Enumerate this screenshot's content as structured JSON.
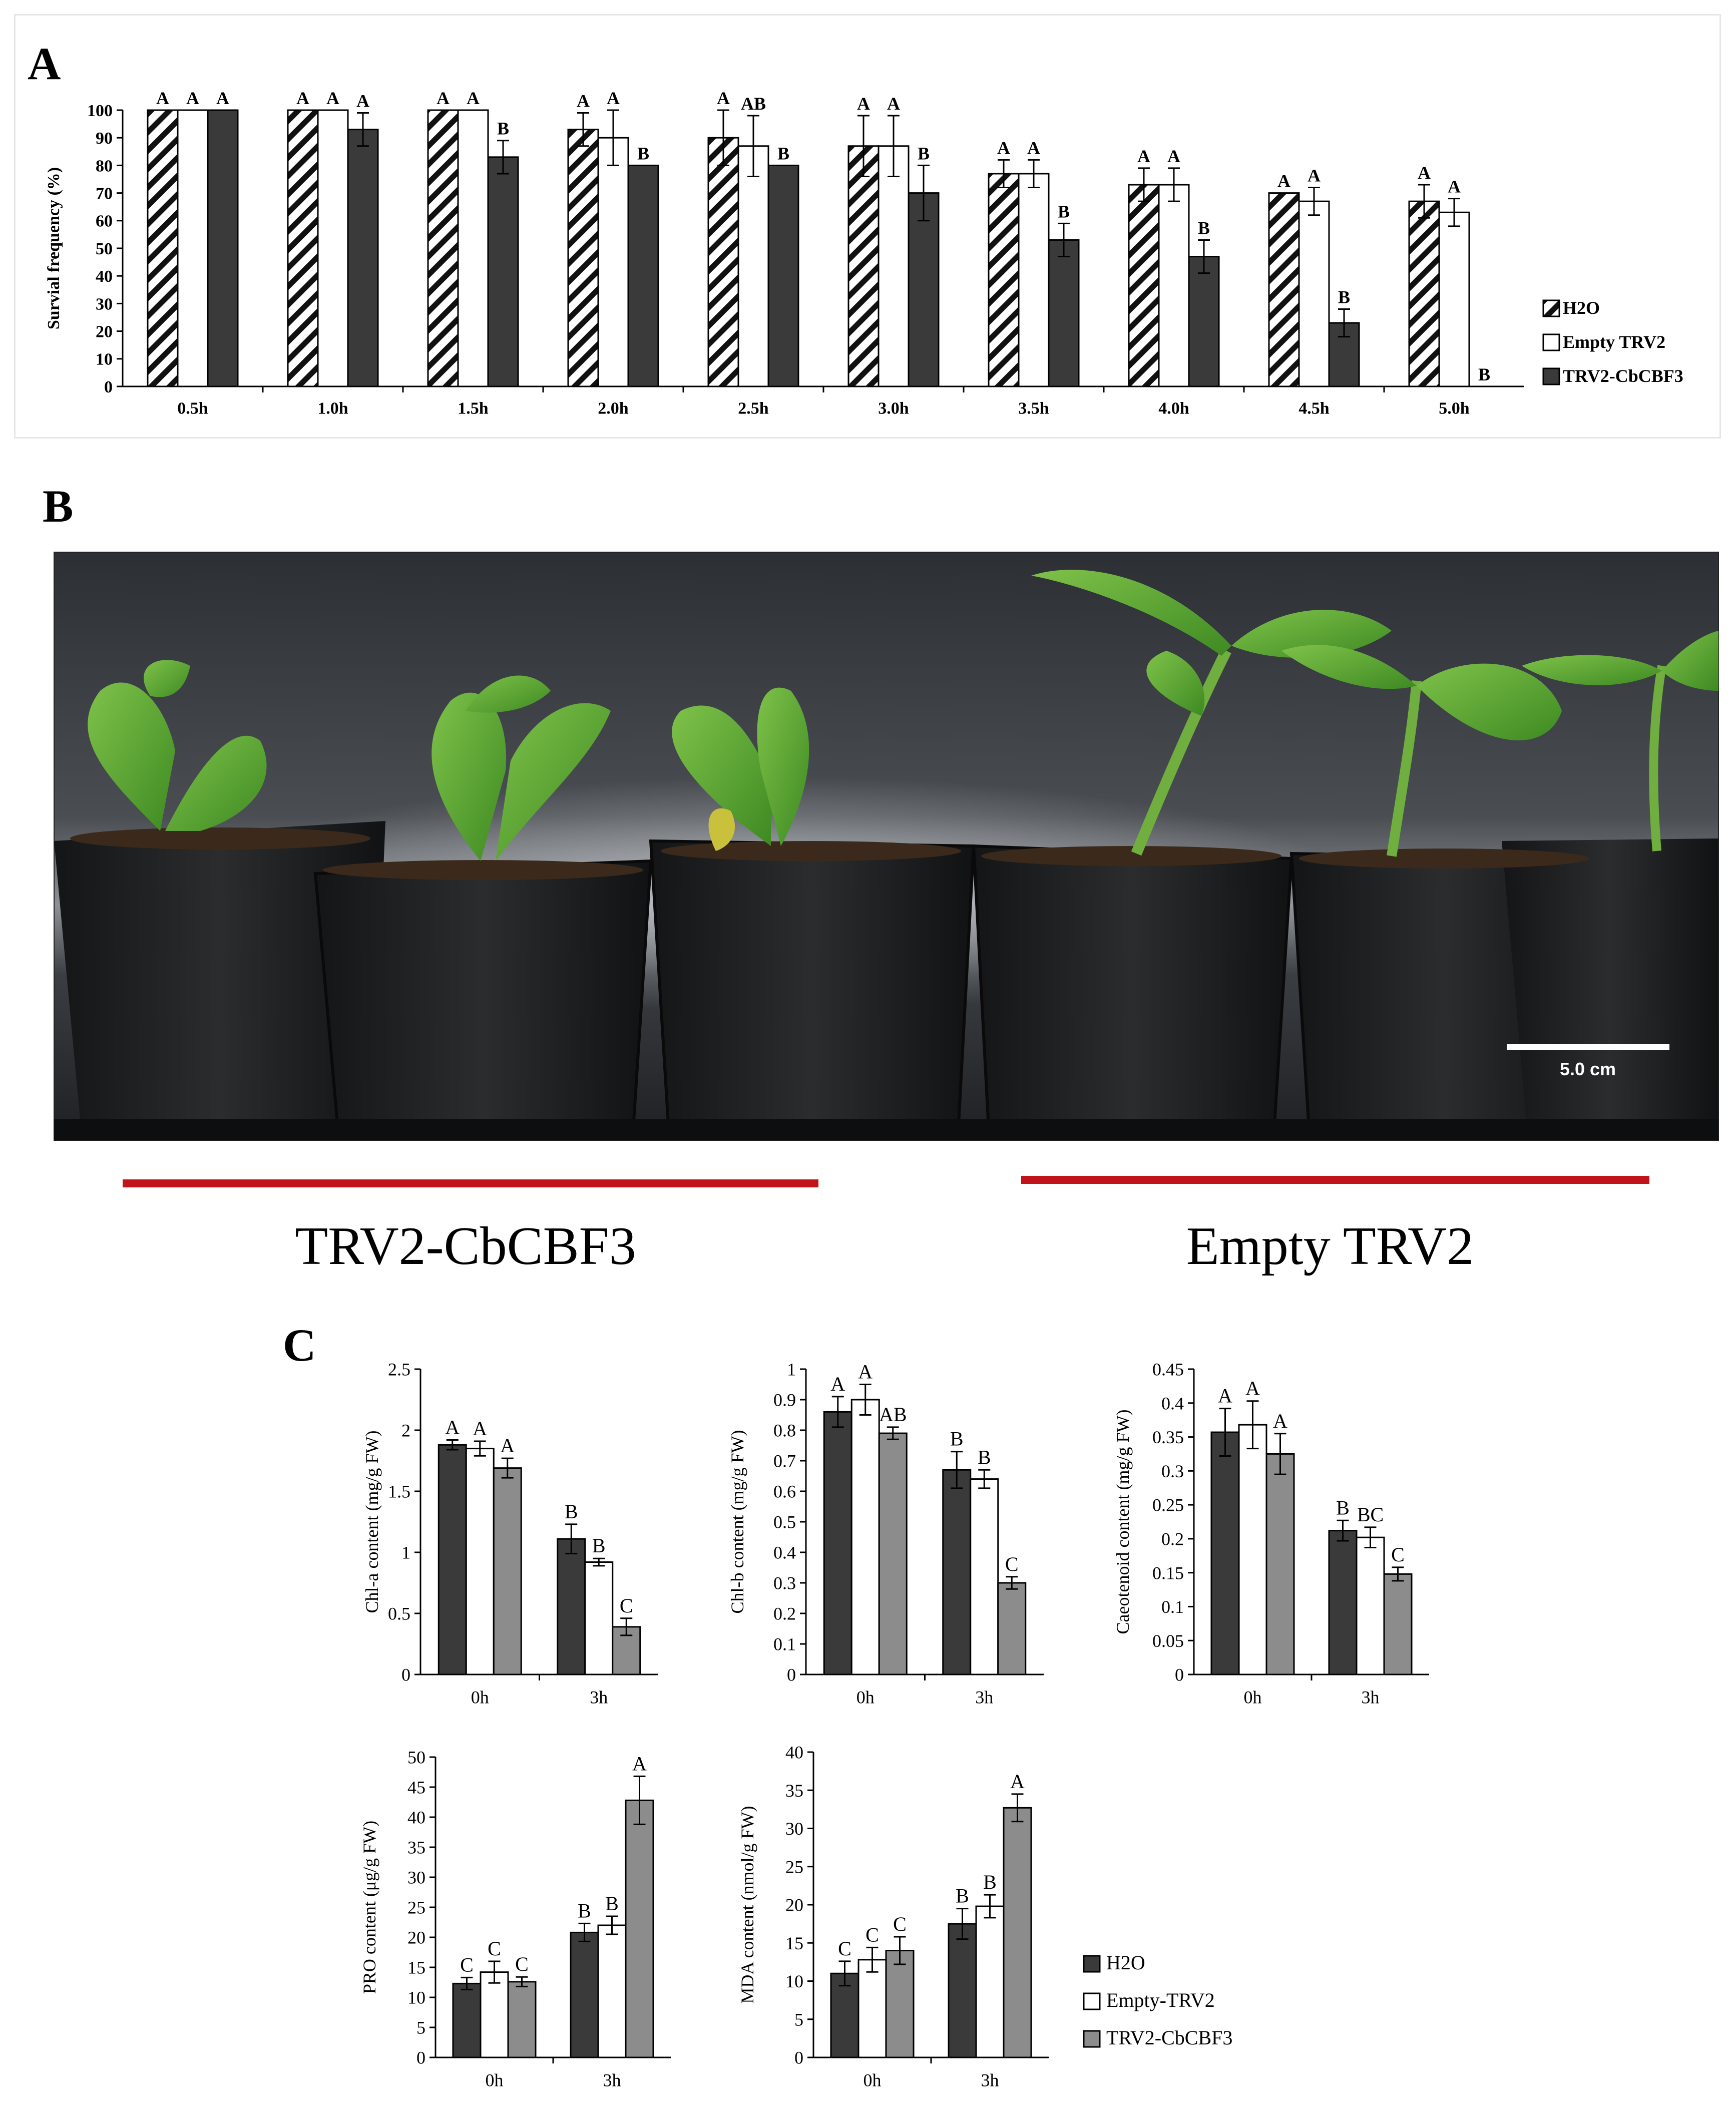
{
  "panels": {
    "a": "A",
    "b": "B",
    "c": "C"
  },
  "colors": {
    "dark": "#3a3a3a",
    "white": "#ffffff",
    "gray": "#8c8c8c",
    "axis": "#000000",
    "redline": "#c0141a"
  },
  "chart_data": [
    {
      "id": "A",
      "type": "bar",
      "categories": [
        "0.5h",
        "1.0h",
        "1.5h",
        "2.0h",
        "2.5h",
        "3.0h",
        "3.5h",
        "4.0h",
        "4.5h",
        "5.0h"
      ],
      "ylabel": "Survial frequency (%)",
      "ylim": [
        0,
        100
      ],
      "yticks": [
        "0",
        "10",
        "20",
        "30",
        "40",
        "50",
        "60",
        "70",
        "80",
        "90",
        "100"
      ],
      "legend": "right",
      "series": [
        {
          "name": "H2O",
          "fill": "hatch",
          "values": [
            100,
            100,
            100,
            93,
            90,
            87,
            77,
            73,
            70,
            67
          ],
          "errors": [
            0,
            0,
            0,
            6,
            10,
            11,
            5,
            6,
            0,
            6
          ],
          "letters": [
            "A",
            "A",
            "A",
            "A",
            "A",
            "A",
            "A",
            "A",
            "A",
            "A"
          ]
        },
        {
          "name": "Empty TRV2",
          "fill": "white",
          "values": [
            100,
            100,
            100,
            90,
            87,
            87,
            77,
            73,
            67,
            63
          ],
          "errors": [
            0,
            0,
            0,
            10,
            11,
            11,
            5,
            6,
            5,
            5
          ],
          "letters": [
            "A",
            "A",
            "A",
            "A",
            "AB",
            "A",
            "A",
            "A",
            "A",
            "A"
          ]
        },
        {
          "name": "TRV2-CbCBF3",
          "fill": "dark",
          "values": [
            100,
            93,
            83,
            80,
            80,
            70,
            53,
            47,
            23,
            0
          ],
          "errors": [
            0,
            6,
            6,
            0,
            0,
            10,
            6,
            6,
            5,
            0
          ],
          "letters": [
            "A",
            "A",
            "B",
            "B",
            "B",
            "B",
            "B",
            "B",
            "B",
            "B"
          ]
        }
      ]
    },
    {
      "id": "C1",
      "type": "bar",
      "categories": [
        "0h",
        "3h"
      ],
      "ylabel": "Chl-a content (mg/g FW)",
      "ylim": [
        0,
        2.5
      ],
      "yticks": [
        "0",
        "0.5",
        "1",
        "1.5",
        "2",
        "2.5"
      ],
      "series": [
        {
          "name": "H2O",
          "values": [
            1.88,
            1.11
          ],
          "errors": [
            0.04,
            0.12
          ],
          "letters": [
            "A",
            "B"
          ]
        },
        {
          "name": "Empty-TRV2",
          "values": [
            1.85,
            0.92
          ],
          "errors": [
            0.06,
            0.03
          ],
          "letters": [
            "A",
            "B"
          ]
        },
        {
          "name": "TRV2-CbCBF3",
          "values": [
            1.69,
            0.39
          ],
          "errors": [
            0.08,
            0.07
          ],
          "letters": [
            "A",
            "C"
          ]
        }
      ]
    },
    {
      "id": "C2",
      "type": "bar",
      "categories": [
        "0h",
        "3h"
      ],
      "ylabel": "Chl-b content (mg/g FW)",
      "ylim": [
        0,
        1
      ],
      "yticks": [
        "0",
        "0.1",
        "0.2",
        "0.3",
        "0.4",
        "0.5",
        "0.6",
        "0.7",
        "0.8",
        "0.9",
        "1"
      ],
      "series": [
        {
          "name": "H2O",
          "values": [
            0.86,
            0.67
          ],
          "errors": [
            0.05,
            0.06
          ],
          "letters": [
            "A",
            "B"
          ]
        },
        {
          "name": "Empty-TRV2",
          "values": [
            0.9,
            0.64
          ],
          "errors": [
            0.05,
            0.03
          ],
          "letters": [
            "A",
            "B"
          ]
        },
        {
          "name": "TRV2-CbCBF3",
          "values": [
            0.79,
            0.3
          ],
          "errors": [
            0.02,
            0.02
          ],
          "letters": [
            "AB",
            "C"
          ]
        }
      ]
    },
    {
      "id": "C3",
      "type": "bar",
      "categories": [
        "0h",
        "3h"
      ],
      "ylabel": "Caeotenoid content (mg/g FW)",
      "ylim": [
        0,
        0.45
      ],
      "yticks": [
        "0",
        "0.05",
        "0.1",
        "0.15",
        "0.2",
        "0.25",
        "0.3",
        "0.35",
        "0.4",
        "0.45"
      ],
      "series": [
        {
          "name": "H2O",
          "values": [
            0.357,
            0.212
          ],
          "errors": [
            0.035,
            0.015
          ],
          "letters": [
            "A",
            "B"
          ]
        },
        {
          "name": "Empty-TRV2",
          "values": [
            0.368,
            0.202
          ],
          "errors": [
            0.035,
            0.015
          ],
          "letters": [
            "A",
            "BC"
          ]
        },
        {
          "name": "TRV2-CbCBF3",
          "values": [
            0.325,
            0.148
          ],
          "errors": [
            0.03,
            0.01
          ],
          "letters": [
            "A",
            "C"
          ]
        }
      ]
    },
    {
      "id": "C4",
      "type": "bar",
      "categories": [
        "0h",
        "3h"
      ],
      "ylabel": "PRO content (μg/g FW)",
      "ylim": [
        0,
        50
      ],
      "yticks": [
        "0",
        "5",
        "10",
        "15",
        "20",
        "25",
        "30",
        "35",
        "40",
        "45",
        "50"
      ],
      "series": [
        {
          "name": "H2O",
          "values": [
            12.3,
            20.8
          ],
          "errors": [
            1.0,
            1.5
          ],
          "letters": [
            "C",
            "B"
          ]
        },
        {
          "name": "Empty-TRV2",
          "values": [
            14.2,
            22.0
          ],
          "errors": [
            1.8,
            1.5
          ],
          "letters": [
            "C",
            "B"
          ]
        },
        {
          "name": "TRV2-CbCBF3",
          "values": [
            12.6,
            42.8
          ],
          "errors": [
            0.8,
            4.0
          ],
          "letters": [
            "C",
            "A"
          ]
        }
      ]
    },
    {
      "id": "C5",
      "type": "bar",
      "categories": [
        "0h",
        "3h"
      ],
      "ylabel": "MDA content (nmol/g FW)",
      "ylim": [
        0,
        40
      ],
      "yticks": [
        "0",
        "5",
        "10",
        "15",
        "20",
        "25",
        "30",
        "35",
        "40"
      ],
      "series": [
        {
          "name": "H2O",
          "values": [
            11.0,
            17.5
          ],
          "errors": [
            1.6,
            2.0
          ],
          "letters": [
            "C",
            "B"
          ]
        },
        {
          "name": "Empty-TRV2",
          "values": [
            12.8,
            19.8
          ],
          "errors": [
            1.6,
            1.5
          ],
          "letters": [
            "C",
            "B"
          ]
        },
        {
          "name": "TRV2-CbCBF3",
          "values": [
            14.0,
            32.7
          ],
          "errors": [
            1.8,
            1.8
          ],
          "letters": [
            "C",
            "A"
          ]
        }
      ]
    }
  ],
  "legendC": [
    "H2O",
    "Empty-TRV2",
    "TRV2-CbCBF3"
  ],
  "photo": {
    "scale_label": "5.0 cm",
    "group_left": "TRV2-CbCBF3",
    "group_right": "Empty TRV2"
  }
}
